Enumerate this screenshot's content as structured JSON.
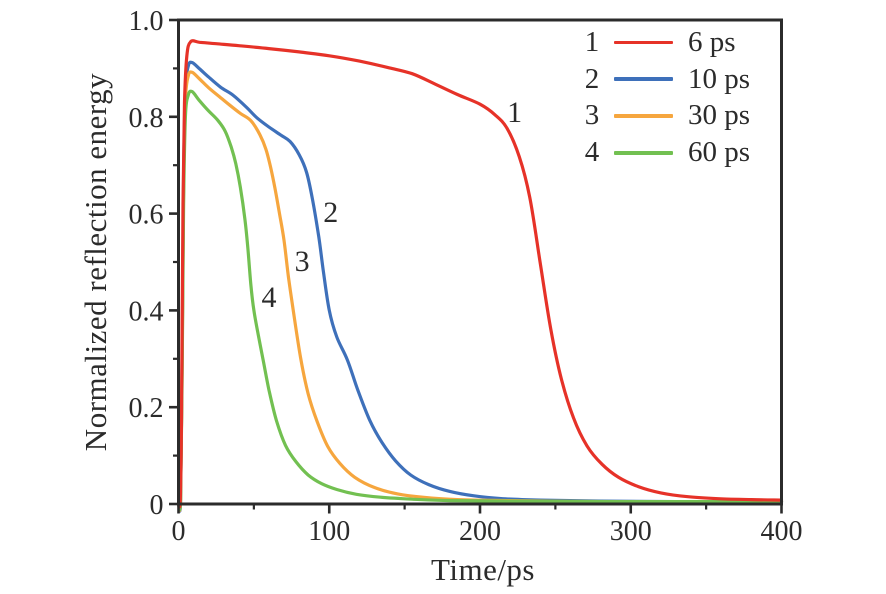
{
  "figure": {
    "background": "#ffffff",
    "axis_color": "#2b2b2b",
    "text_color": "#2b2b2b"
  },
  "axes": {
    "x_title": "Time/ps",
    "y_title": "Normalized reflection energy"
  },
  "legend": {
    "entries": [
      {
        "number": "1",
        "label": "6 ps",
        "color": "#e63228"
      },
      {
        "number": "2",
        "label": "10 ps",
        "color": "#3e70ba"
      },
      {
        "number": "3",
        "label": "30 ps",
        "color": "#f6a63e"
      },
      {
        "number": "4",
        "label": "60 ps",
        "color": "#72c051"
      }
    ]
  },
  "chart_data": {
    "type": "line",
    "title": "",
    "xlabel": "Time/ps",
    "ylabel": "Normalized reflection energy",
    "xlim": [
      0,
      400
    ],
    "ylim": [
      0,
      1.0
    ],
    "x_major_ticks": [
      0,
      100,
      200,
      300,
      400
    ],
    "x_tick_labels": [
      "0",
      "100",
      "200",
      "300",
      "400"
    ],
    "x_minor_ticks": [
      50,
      150,
      250,
      350
    ],
    "y_major_ticks": [
      0,
      0.2,
      0.4,
      0.6,
      0.8,
      1.0
    ],
    "y_tick_labels": [
      "0",
      "0.2",
      "0.4",
      "0.6",
      "0.8",
      "1.0"
    ],
    "y_minor_ticks": [
      0.1,
      0.3,
      0.5,
      0.7,
      0.9
    ],
    "grid": false,
    "legend_position": "inside-top-right",
    "series": [
      {
        "number": "1",
        "name": "6 ps",
        "color": "#e63228",
        "points": [
          [
            0,
            0
          ],
          [
            1.2,
            0.01
          ],
          [
            2,
            0.18
          ],
          [
            3,
            0.62
          ],
          [
            4,
            0.83
          ],
          [
            5.5,
            0.925
          ],
          [
            8,
            0.955
          ],
          [
            14,
            0.954
          ],
          [
            25,
            0.951
          ],
          [
            40,
            0.947
          ],
          [
            60,
            0.941
          ],
          [
            80,
            0.934
          ],
          [
            100,
            0.926
          ],
          [
            120,
            0.915
          ],
          [
            140,
            0.901
          ],
          [
            155,
            0.889
          ],
          [
            170,
            0.868
          ],
          [
            185,
            0.846
          ],
          [
            200,
            0.826
          ],
          [
            210,
            0.804
          ],
          [
            218,
            0.776
          ],
          [
            226,
            0.718
          ],
          [
            233,
            0.634
          ],
          [
            240,
            0.497
          ],
          [
            247,
            0.36
          ],
          [
            254,
            0.258
          ],
          [
            262,
            0.178
          ],
          [
            271,
            0.12
          ],
          [
            281,
            0.082
          ],
          [
            292,
            0.055
          ],
          [
            305,
            0.036
          ],
          [
            320,
            0.023
          ],
          [
            338,
            0.015
          ],
          [
            358,
            0.011
          ],
          [
            380,
            0.009
          ],
          [
            400,
            0.008
          ]
        ]
      },
      {
        "number": "2",
        "name": "10 ps",
        "color": "#3e70ba",
        "points": [
          [
            0,
            0
          ],
          [
            1.4,
            0.01
          ],
          [
            2.4,
            0.3
          ],
          [
            3.4,
            0.68
          ],
          [
            4.6,
            0.855
          ],
          [
            6.5,
            0.905
          ],
          [
            9,
            0.912
          ],
          [
            14,
            0.899
          ],
          [
            20,
            0.882
          ],
          [
            28,
            0.861
          ],
          [
            36,
            0.845
          ],
          [
            45,
            0.82
          ],
          [
            52,
            0.798
          ],
          [
            60,
            0.779
          ],
          [
            68,
            0.762
          ],
          [
            74,
            0.749
          ],
          [
            80,
            0.722
          ],
          [
            85,
            0.685
          ],
          [
            89,
            0.627
          ],
          [
            93,
            0.553
          ],
          [
            96,
            0.483
          ],
          [
            100,
            0.4
          ],
          [
            105,
            0.345
          ],
          [
            112,
            0.298
          ],
          [
            119,
            0.235
          ],
          [
            127,
            0.172
          ],
          [
            135,
            0.127
          ],
          [
            144,
            0.089
          ],
          [
            154,
            0.06
          ],
          [
            166,
            0.04
          ],
          [
            180,
            0.026
          ],
          [
            196,
            0.017
          ],
          [
            215,
            0.011
          ],
          [
            240,
            0.008
          ],
          [
            280,
            0.006
          ],
          [
            330,
            0.005
          ],
          [
            400,
            0.005
          ]
        ]
      },
      {
        "number": "3",
        "name": "30 ps",
        "color": "#f6a63e",
        "points": [
          [
            0,
            0
          ],
          [
            1.4,
            0.01
          ],
          [
            2.4,
            0.28
          ],
          [
            3.4,
            0.66
          ],
          [
            4.6,
            0.835
          ],
          [
            6.5,
            0.885
          ],
          [
            9,
            0.892
          ],
          [
            14,
            0.878
          ],
          [
            20,
            0.86
          ],
          [
            27,
            0.842
          ],
          [
            34,
            0.824
          ],
          [
            41,
            0.807
          ],
          [
            48,
            0.792
          ],
          [
            54,
            0.763
          ],
          [
            58,
            0.733
          ],
          [
            61,
            0.697
          ],
          [
            64,
            0.652
          ],
          [
            67,
            0.6
          ],
          [
            70,
            0.545
          ],
          [
            73,
            0.468
          ],
          [
            76,
            0.402
          ],
          [
            81,
            0.302
          ],
          [
            86,
            0.228
          ],
          [
            92,
            0.17
          ],
          [
            99,
            0.119
          ],
          [
            107,
            0.084
          ],
          [
            117,
            0.055
          ],
          [
            130,
            0.034
          ],
          [
            145,
            0.021
          ],
          [
            162,
            0.014
          ],
          [
            185,
            0.009
          ],
          [
            220,
            0.007
          ],
          [
            280,
            0.005
          ],
          [
            340,
            0.005
          ],
          [
            400,
            0.005
          ]
        ]
      },
      {
        "number": "4",
        "name": "60 ps",
        "color": "#72c051",
        "points": [
          [
            0,
            0
          ],
          [
            1.4,
            0.01
          ],
          [
            2.4,
            0.26
          ],
          [
            3.4,
            0.62
          ],
          [
            4.6,
            0.8
          ],
          [
            6.5,
            0.845
          ],
          [
            9,
            0.852
          ],
          [
            14,
            0.833
          ],
          [
            20,
            0.812
          ],
          [
            26,
            0.793
          ],
          [
            31,
            0.77
          ],
          [
            35,
            0.737
          ],
          [
            38,
            0.703
          ],
          [
            41,
            0.655
          ],
          [
            44,
            0.59
          ],
          [
            46,
            0.53
          ],
          [
            48,
            0.452
          ],
          [
            50,
            0.4
          ],
          [
            53,
            0.348
          ],
          [
            56,
            0.3
          ],
          [
            60,
            0.236
          ],
          [
            65,
            0.172
          ],
          [
            71,
            0.121
          ],
          [
            78,
            0.087
          ],
          [
            86,
            0.06
          ],
          [
            95,
            0.042
          ],
          [
            105,
            0.03
          ],
          [
            118,
            0.02
          ],
          [
            134,
            0.014
          ],
          [
            155,
            0.01
          ],
          [
            180,
            0.007
          ],
          [
            220,
            0.006
          ],
          [
            290,
            0.005
          ],
          [
            400,
            0.005
          ]
        ]
      }
    ],
    "curve_labels": [
      {
        "text": "1",
        "t": 223,
        "E": 0.808
      },
      {
        "text": "2",
        "t": 101,
        "E": 0.601
      },
      {
        "text": "3",
        "t": 82,
        "E": 0.5
      },
      {
        "text": "4",
        "t": 60,
        "E": 0.426
      }
    ]
  }
}
